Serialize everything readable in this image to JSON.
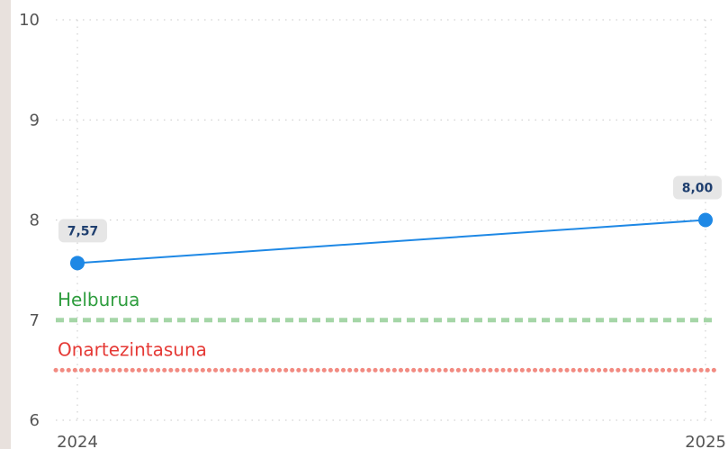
{
  "colors": {
    "series": "#1e88e5",
    "target": "#a5d6a7",
    "target_label": "#2e9d3e",
    "tolerance": "#f28b82",
    "tolerance_label": "#e53935",
    "grid": "#c8c8c8",
    "label_bg": "#e6e6e6"
  },
  "chart_data": {
    "type": "line",
    "x": [
      "2024",
      "2025"
    ],
    "series": [
      {
        "values": [
          7.57,
          8.0
        ],
        "labels": [
          "7,57",
          "8,00"
        ]
      }
    ],
    "ylim": [
      6,
      10
    ],
    "yticks": [
      "6",
      "7",
      "8",
      "9",
      "10"
    ],
    "grid": true,
    "reference_lines": [
      {
        "name": "Helburua",
        "value": 7.0,
        "style": "dashed"
      },
      {
        "name": "Onartezintasuna",
        "value": 6.5,
        "style": "dotted"
      }
    ]
  }
}
